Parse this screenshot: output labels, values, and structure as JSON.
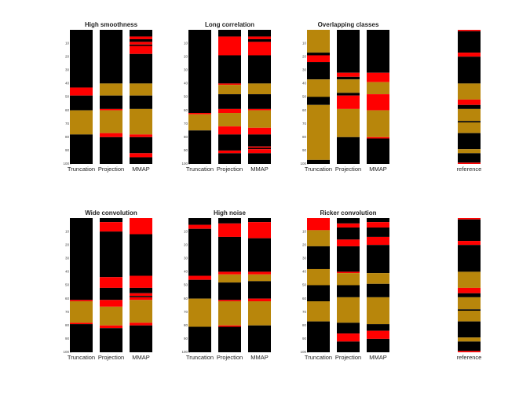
{
  "chart_data": [
    {
      "type": "segments",
      "title": "High smoothness",
      "ylim": [
        0,
        100
      ],
      "yticks": [
        10,
        20,
        30,
        40,
        50,
        60,
        70,
        80,
        90,
        100
      ],
      "series": [
        {
          "name": "Truncation",
          "values": [
            43,
            6,
            11,
            18,
            22
          ],
          "colors": [
            "#000000",
            "#ff0000",
            "#000000",
            "#b8860b",
            "#000000"
          ]
        },
        {
          "name": "Projection",
          "values": [
            40,
            9,
            10,
            1,
            17,
            3,
            20
          ],
          "colors": [
            "#000000",
            "#b8860b",
            "#000000",
            "#ff0000",
            "#b8860b",
            "#ff0000",
            "#000000"
          ]
        },
        {
          "name": "MMAP",
          "values": [
            5,
            2,
            2,
            2,
            1,
            6,
            22,
            9,
            10,
            19,
            2,
            12,
            3,
            5
          ],
          "colors": [
            "#000000",
            "#ff0000",
            "#000000",
            "#ff0000",
            "#000000",
            "#ff0000",
            "#000000",
            "#b8860b",
            "#000000",
            "#b8860b",
            "#ff0000",
            "#000000",
            "#ff0000",
            "#000000"
          ]
        }
      ]
    },
    {
      "type": "segments",
      "title": "Long correlation",
      "ylim": [
        0,
        100
      ],
      "yticks": [
        10,
        20,
        30,
        40,
        50,
        60,
        70,
        80,
        90,
        100
      ],
      "series": [
        {
          "name": "Truncation",
          "values": [
            62,
            1,
            12,
            25
          ],
          "colors": [
            "#000000",
            "#ff0000",
            "#b8860b",
            "#000000"
          ]
        },
        {
          "name": "Projection",
          "values": [
            5,
            14,
            21,
            1,
            7,
            11,
            3,
            10,
            6,
            12,
            2,
            8
          ],
          "colors": [
            "#000000",
            "#ff0000",
            "#000000",
            "#ff0000",
            "#b8860b",
            "#000000",
            "#ff0000",
            "#b8860b",
            "#ff0000",
            "#000000",
            "#ff0000",
            "#000000"
          ]
        },
        {
          "name": "MMAP",
          "values": [
            5,
            2,
            2,
            10,
            21,
            8,
            11,
            1,
            13,
            5,
            9,
            1,
            1,
            3,
            8
          ],
          "colors": [
            "#000000",
            "#ff0000",
            "#000000",
            "#ff0000",
            "#000000",
            "#b8860b",
            "#000000",
            "#ff0000",
            "#b8860b",
            "#ff0000",
            "#000000",
            "#ff0000",
            "#000000",
            "#ff0000",
            "#000000"
          ]
        }
      ]
    },
    {
      "type": "segments",
      "title": "Overlapping classes",
      "ylim": [
        0,
        100
      ],
      "yticks": [
        10,
        20,
        30,
        40,
        50,
        60,
        70,
        80,
        90,
        100
      ],
      "series": [
        {
          "name": "Truncation",
          "values": [
            17,
            2,
            5,
            13,
            13,
            6,
            41,
            3
          ],
          "colors": [
            "#b8860b",
            "#000000",
            "#ff0000",
            "#000000",
            "#b8860b",
            "#000000",
            "#b8860b",
            "#000000"
          ]
        },
        {
          "name": "Projection",
          "values": [
            32,
            3,
            2,
            10,
            2,
            10,
            21,
            20
          ],
          "colors": [
            "#000000",
            "#ff0000",
            "#000000",
            "#b8860b",
            "#000000",
            "#ff0000",
            "#b8860b",
            "#000000"
          ]
        },
        {
          "name": "MMAP",
          "values": [
            32,
            7,
            9,
            12,
            20,
            1,
            19
          ],
          "colors": [
            "#000000",
            "#ff0000",
            "#b8860b",
            "#ff0000",
            "#b8860b",
            "#ff0000",
            "#000000"
          ]
        }
      ]
    },
    {
      "type": "segments",
      "ylim": [
        0,
        100
      ],
      "series": [
        {
          "name": "reference",
          "values": [
            1,
            16,
            3,
            20,
            12,
            4,
            3,
            9,
            1,
            8,
            12,
            3,
            7,
            1
          ],
          "colors": [
            "#ff0000",
            "#000000",
            "#ff0000",
            "#000000",
            "#b8860b",
            "#ff0000",
            "#000000",
            "#b8860b",
            "#000000",
            "#b8860b",
            "#000000",
            "#b8860b",
            "#000000",
            "#ff0000"
          ]
        }
      ]
    },
    {
      "type": "segments",
      "title": "Wide convolution",
      "ylim": [
        0,
        100
      ],
      "yticks": [
        10,
        20,
        30,
        40,
        50,
        60,
        70,
        80,
        90,
        100
      ],
      "series": [
        {
          "name": "Truncation",
          "values": [
            61,
            1,
            16,
            1,
            21
          ],
          "colors": [
            "#000000",
            "#ff0000",
            "#b8860b",
            "#ff0000",
            "#000000"
          ]
        },
        {
          "name": "Projection",
          "values": [
            3,
            7,
            34,
            8,
            9,
            5,
            14,
            2,
            18
          ],
          "colors": [
            "#000000",
            "#ff0000",
            "#000000",
            "#ff0000",
            "#000000",
            "#ff0000",
            "#b8860b",
            "#ff0000",
            "#000000"
          ]
        },
        {
          "name": "MMAP",
          "values": [
            12,
            31,
            9,
            4,
            2,
            1,
            2,
            17,
            2,
            20
          ],
          "colors": [
            "#ff0000",
            "#000000",
            "#ff0000",
            "#000000",
            "#ff0000",
            "#000000",
            "#ff0000",
            "#b8860b",
            "#ff0000",
            "#000000"
          ]
        }
      ]
    },
    {
      "type": "segments",
      "title": "High noise",
      "ylim": [
        0,
        100
      ],
      "yticks": [
        10,
        20,
        30,
        40,
        50,
        60,
        70,
        80,
        90,
        100
      ],
      "series": [
        {
          "name": "Truncation",
          "values": [
            5,
            3,
            35,
            3,
            14,
            21,
            19
          ],
          "colors": [
            "#000000",
            "#ff0000",
            "#000000",
            "#ff0000",
            "#000000",
            "#b8860b",
            "#000000"
          ]
        },
        {
          "name": "Projection",
          "values": [
            4,
            10,
            26,
            2,
            6,
            13,
            1,
            18,
            1,
            19
          ],
          "colors": [
            "#000000",
            "#ff0000",
            "#000000",
            "#ff0000",
            "#b8860b",
            "#000000",
            "#ff0000",
            "#b8860b",
            "#ff0000",
            "#000000"
          ]
        },
        {
          "name": "MMAP",
          "values": [
            3,
            12,
            25,
            2,
            5,
            13,
            2,
            18,
            20
          ],
          "colors": [
            "#000000",
            "#ff0000",
            "#000000",
            "#ff0000",
            "#b8860b",
            "#000000",
            "#ff0000",
            "#b8860b",
            "#000000"
          ]
        }
      ]
    },
    {
      "type": "segments",
      "title": "Ricker convolution",
      "ylim": [
        0,
        100
      ],
      "yticks": [
        10,
        20,
        30,
        40,
        50,
        60,
        70,
        80,
        90,
        100
      ],
      "series": [
        {
          "name": "Truncation",
          "values": [
            9,
            12,
            17,
            12,
            12,
            15,
            23
          ],
          "colors": [
            "#ff0000",
            "#b8860b",
            "#000000",
            "#b8860b",
            "#000000",
            "#b8860b",
            "#000000"
          ]
        },
        {
          "name": "Projection",
          "values": [
            4,
            3,
            9,
            5,
            19,
            1,
            9,
            9,
            19,
            8,
            6,
            8
          ],
          "colors": [
            "#000000",
            "#ff0000",
            "#000000",
            "#ff0000",
            "#000000",
            "#ff0000",
            "#b8860b",
            "#000000",
            "#b8860b",
            "#000000",
            "#ff0000",
            "#000000"
          ]
        },
        {
          "name": "MMAP",
          "values": [
            3,
            4,
            7,
            6,
            21,
            8,
            10,
            20,
            5,
            6,
            10
          ],
          "colors": [
            "#000000",
            "#ff0000",
            "#000000",
            "#ff0000",
            "#000000",
            "#b8860b",
            "#000000",
            "#b8860b",
            "#000000",
            "#ff0000",
            "#000000"
          ]
        }
      ]
    },
    {
      "type": "segments",
      "ylim": [
        0,
        100
      ],
      "series": [
        {
          "name": "reference",
          "values": [
            1,
            16,
            3,
            20,
            12,
            4,
            3,
            9,
            1,
            8,
            12,
            3,
            7,
            1
          ],
          "colors": [
            "#ff0000",
            "#000000",
            "#ff0000",
            "#000000",
            "#b8860b",
            "#ff0000",
            "#000000",
            "#b8860b",
            "#000000",
            "#b8860b",
            "#000000",
            "#b8860b",
            "#000000",
            "#ff0000"
          ]
        }
      ]
    }
  ]
}
